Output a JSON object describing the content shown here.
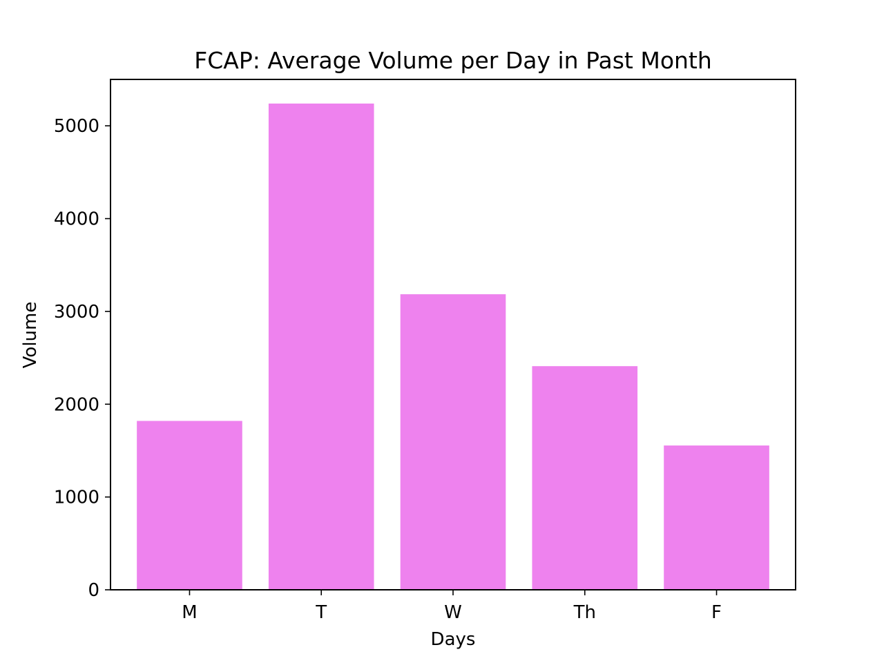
{
  "chart_data": {
    "type": "bar",
    "title": "FCAP: Average Volume per Day in Past Month",
    "xlabel": "Days",
    "ylabel": "Volume",
    "categories": [
      "M",
      "T",
      "W",
      "Th",
      "F"
    ],
    "values": [
      1820,
      5240,
      3185,
      2410,
      1555
    ],
    "ylim": [
      0,
      5500
    ],
    "yticks": [
      0,
      1000,
      2000,
      3000,
      4000,
      5000
    ],
    "ytick_labels": [
      "0",
      "1000",
      "2000",
      "3000",
      "4000",
      "5000"
    ],
    "bar_color": "#ee82ee",
    "grid": false,
    "legend": "none"
  }
}
